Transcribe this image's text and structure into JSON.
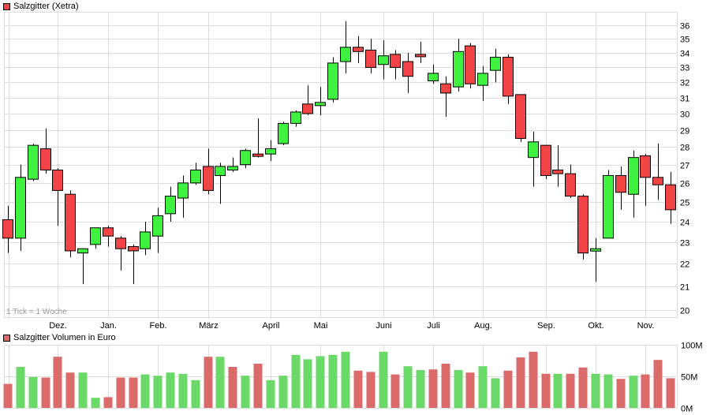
{
  "price_legend": {
    "label": "Salzgitter (Xetra)",
    "color": "#f04545"
  },
  "volume_legend": {
    "label": "Salzgitter Volumen in Euro",
    "color": "#db6a6a"
  },
  "tick_note": "1 Tick = 1 Woche",
  "colors": {
    "up": "#3ff23f",
    "down": "#f24444",
    "vol_up": "#6ad96a",
    "vol_down": "#db6a6a",
    "grid": "#dddddd"
  },
  "chart_data": [
    {
      "type": "candlestick",
      "title": "Salzgitter (Xetra)",
      "xlabel": "",
      "ylabel": "",
      "y_scale": "log",
      "ylim": [
        20,
        36.5
      ],
      "y_ticks": [
        20,
        21,
        22,
        23,
        24,
        25,
        26,
        27,
        28,
        29,
        30,
        31,
        32,
        33,
        34,
        35,
        36
      ],
      "x_ticks": [
        {
          "label": "Dez.",
          "index": 4
        },
        {
          "label": "Jan.",
          "index": 8
        },
        {
          "label": "Feb.",
          "index": 12
        },
        {
          "label": "März",
          "index": 16
        },
        {
          "label": "April",
          "index": 21
        },
        {
          "label": "Mai",
          "index": 25
        },
        {
          "label": "Juni",
          "index": 30
        },
        {
          "label": "Juli",
          "index": 34
        },
        {
          "label": "Aug.",
          "index": 38
        },
        {
          "label": "Sep.",
          "index": 43
        },
        {
          "label": "Okt.",
          "index": 47
        },
        {
          "label": "Nov.",
          "index": 51
        }
      ],
      "grid": true,
      "annotation": "1 Tick = 1 Woche",
      "candles": [
        {
          "o": 24.1,
          "h": 24.8,
          "l": 22.5,
          "c": 23.2
        },
        {
          "o": 23.2,
          "h": 27.0,
          "l": 22.6,
          "c": 26.3
        },
        {
          "o": 26.2,
          "h": 28.2,
          "l": 26.1,
          "c": 28.1
        },
        {
          "o": 27.9,
          "h": 29.1,
          "l": 26.5,
          "c": 26.7
        },
        {
          "o": 26.7,
          "h": 26.8,
          "l": 23.8,
          "c": 25.6
        },
        {
          "o": 25.4,
          "h": 25.6,
          "l": 22.3,
          "c": 22.6
        },
        {
          "o": 22.5,
          "h": 22.7,
          "l": 21.1,
          "c": 22.7
        },
        {
          "o": 22.9,
          "h": 23.7,
          "l": 22.7,
          "c": 23.7
        },
        {
          "o": 23.7,
          "h": 23.8,
          "l": 22.8,
          "c": 23.3
        },
        {
          "o": 23.2,
          "h": 23.3,
          "l": 21.7,
          "c": 22.7
        },
        {
          "o": 22.8,
          "h": 22.9,
          "l": 21.1,
          "c": 22.6
        },
        {
          "o": 22.7,
          "h": 24.0,
          "l": 22.4,
          "c": 23.5
        },
        {
          "o": 23.3,
          "h": 24.7,
          "l": 22.5,
          "c": 24.3
        },
        {
          "o": 24.4,
          "h": 25.8,
          "l": 24.0,
          "c": 25.3
        },
        {
          "o": 25.2,
          "h": 26.4,
          "l": 24.2,
          "c": 26.0
        },
        {
          "o": 26.0,
          "h": 27.1,
          "l": 25.9,
          "c": 26.7
        },
        {
          "o": 26.9,
          "h": 27.9,
          "l": 25.4,
          "c": 25.6
        },
        {
          "o": 26.4,
          "h": 27.1,
          "l": 24.9,
          "c": 26.9
        },
        {
          "o": 26.7,
          "h": 27.4,
          "l": 26.6,
          "c": 26.9
        },
        {
          "o": 27.0,
          "h": 27.9,
          "l": 26.8,
          "c": 27.8
        },
        {
          "o": 27.6,
          "h": 29.7,
          "l": 27.4,
          "c": 27.5
        },
        {
          "o": 27.6,
          "h": 28.4,
          "l": 27.2,
          "c": 27.9
        },
        {
          "o": 28.2,
          "h": 29.5,
          "l": 28.1,
          "c": 29.4
        },
        {
          "o": 29.4,
          "h": 30.2,
          "l": 29.2,
          "c": 30.1
        },
        {
          "o": 30.6,
          "h": 31.8,
          "l": 29.9,
          "c": 30.0
        },
        {
          "o": 30.5,
          "h": 31.7,
          "l": 29.9,
          "c": 30.7
        },
        {
          "o": 30.9,
          "h": 33.7,
          "l": 30.7,
          "c": 33.3
        },
        {
          "o": 33.4,
          "h": 36.3,
          "l": 32.6,
          "c": 34.4
        },
        {
          "o": 34.4,
          "h": 35.2,
          "l": 33.3,
          "c": 34.1
        },
        {
          "o": 34.2,
          "h": 35.0,
          "l": 32.6,
          "c": 33.0
        },
        {
          "o": 33.2,
          "h": 34.9,
          "l": 32.2,
          "c": 33.8
        },
        {
          "o": 33.9,
          "h": 34.2,
          "l": 32.2,
          "c": 33.0
        },
        {
          "o": 33.4,
          "h": 34.0,
          "l": 31.3,
          "c": 32.4
        },
        {
          "o": 33.9,
          "h": 34.8,
          "l": 33.3,
          "c": 33.8
        },
        {
          "o": 32.1,
          "h": 33.2,
          "l": 31.9,
          "c": 32.6
        },
        {
          "o": 31.9,
          "h": 32.4,
          "l": 29.8,
          "c": 31.3
        },
        {
          "o": 31.7,
          "h": 35.0,
          "l": 31.4,
          "c": 34.1
        },
        {
          "o": 34.5,
          "h": 34.7,
          "l": 31.6,
          "c": 31.9
        },
        {
          "o": 31.8,
          "h": 33.1,
          "l": 30.8,
          "c": 32.6
        },
        {
          "o": 32.8,
          "h": 34.3,
          "l": 32.0,
          "c": 33.7
        },
        {
          "o": 33.7,
          "h": 33.9,
          "l": 30.6,
          "c": 31.1
        },
        {
          "o": 31.2,
          "h": 31.2,
          "l": 28.3,
          "c": 28.5
        },
        {
          "o": 27.4,
          "h": 28.9,
          "l": 25.8,
          "c": 28.3
        },
        {
          "o": 28.1,
          "h": 28.1,
          "l": 26.2,
          "c": 26.4
        },
        {
          "o": 26.7,
          "h": 28.1,
          "l": 25.8,
          "c": 26.5
        },
        {
          "o": 26.5,
          "h": 27.0,
          "l": 25.2,
          "c": 25.3
        },
        {
          "o": 25.3,
          "h": 25.4,
          "l": 22.2,
          "c": 22.5
        },
        {
          "o": 22.6,
          "h": 23.2,
          "l": 21.2,
          "c": 22.7
        },
        {
          "o": 23.2,
          "h": 26.7,
          "l": 23.2,
          "c": 26.4
        },
        {
          "o": 26.4,
          "h": 26.9,
          "l": 24.6,
          "c": 25.5
        },
        {
          "o": 25.4,
          "h": 27.8,
          "l": 24.2,
          "c": 27.4
        },
        {
          "o": 27.5,
          "h": 27.6,
          "l": 24.8,
          "c": 26.3
        },
        {
          "o": 26.3,
          "h": 28.2,
          "l": 25.1,
          "c": 25.9
        },
        {
          "o": 25.9,
          "h": 26.6,
          "l": 23.9,
          "c": 24.6
        }
      ]
    },
    {
      "type": "bar",
      "title": "Salzgitter Volumen in Euro",
      "ylabel": "Euro",
      "ylim": [
        0,
        100
      ],
      "y_unit": "M",
      "y_ticks": [
        "0M",
        "50M",
        "100M"
      ],
      "grid": true,
      "series": [
        {
          "name": "Volumen",
          "values": [
            38,
            65,
            49,
            48,
            81,
            56,
            56,
            16,
            17,
            48,
            48,
            53,
            51,
            56,
            54,
            44,
            81,
            81,
            65,
            51,
            70,
            44,
            51,
            84,
            77,
            82,
            84,
            89,
            59,
            57,
            89,
            53,
            66,
            60,
            61,
            70,
            60,
            56,
            66,
            47,
            59,
            80,
            89,
            54,
            54,
            54,
            64,
            54,
            53,
            46,
            51,
            53,
            76,
            47
          ],
          "direction": [
            "down",
            "up",
            "up",
            "down",
            "down",
            "down",
            "up",
            "up",
            "down",
            "down",
            "down",
            "up",
            "up",
            "up",
            "up",
            "up",
            "down",
            "up",
            "down",
            "up",
            "down",
            "up",
            "up",
            "up",
            "up",
            "up",
            "up",
            "up",
            "down",
            "down",
            "up",
            "down",
            "up",
            "up",
            "down",
            "down",
            "up",
            "down",
            "up",
            "up",
            "down",
            "down",
            "down",
            "down",
            "up",
            "down",
            "down",
            "up",
            "up",
            "down",
            "up",
            "down",
            "down",
            "down"
          ]
        }
      ]
    }
  ]
}
